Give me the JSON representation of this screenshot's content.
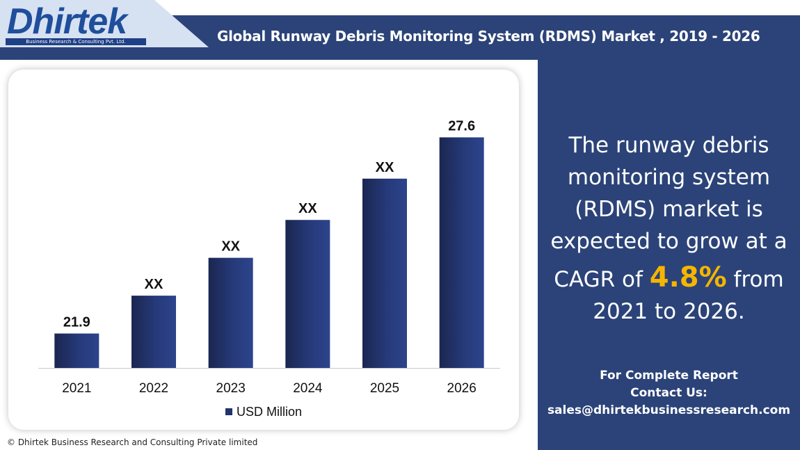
{
  "header": {
    "title": "Global Runway Debris Monitoring System (RDMS) Market , 2019 - 2026"
  },
  "logo": {
    "name": "Dhirtek",
    "tagline": "Business Research & Consulting Pvt. Ltd."
  },
  "chart_data": {
    "type": "bar",
    "categories": [
      "2021",
      "2022",
      "2023",
      "2024",
      "2025",
      "2026"
    ],
    "series": [
      {
        "name": "USD Million",
        "values": [
          21.9,
          23.0,
          24.1,
          25.2,
          26.4,
          27.6
        ],
        "data_labels": [
          "21.9",
          "XX",
          "XX",
          "XX",
          "XX",
          "27.6"
        ]
      }
    ],
    "title": "",
    "xlabel": "",
    "ylabel": "",
    "ylim": [
      20.9,
      28.6
    ],
    "grid": false,
    "legend": "bottom",
    "bar_color": "#22336b"
  },
  "side_panel": {
    "line1": "The runway debris",
    "line2": "monitoring system",
    "line3": "(RDMS) market is",
    "line4": "expected to grow at a",
    "cagr_prefix": "CAGR of",
    "cagr_value": "4.8%",
    "cagr_suffix": "from",
    "line6": "2021 to 2026."
  },
  "contact": {
    "line1": "For Complete Report",
    "line2": "Contact Us:",
    "email": "sales@dhirtekbusinessresearch.com"
  },
  "footer": {
    "copyright": "© Dhirtek Business Research and Consulting Private limited"
  },
  "colors": {
    "navy": "#2b4378",
    "accent": "#f5b500",
    "logo_blue": "#1f4e9c"
  }
}
